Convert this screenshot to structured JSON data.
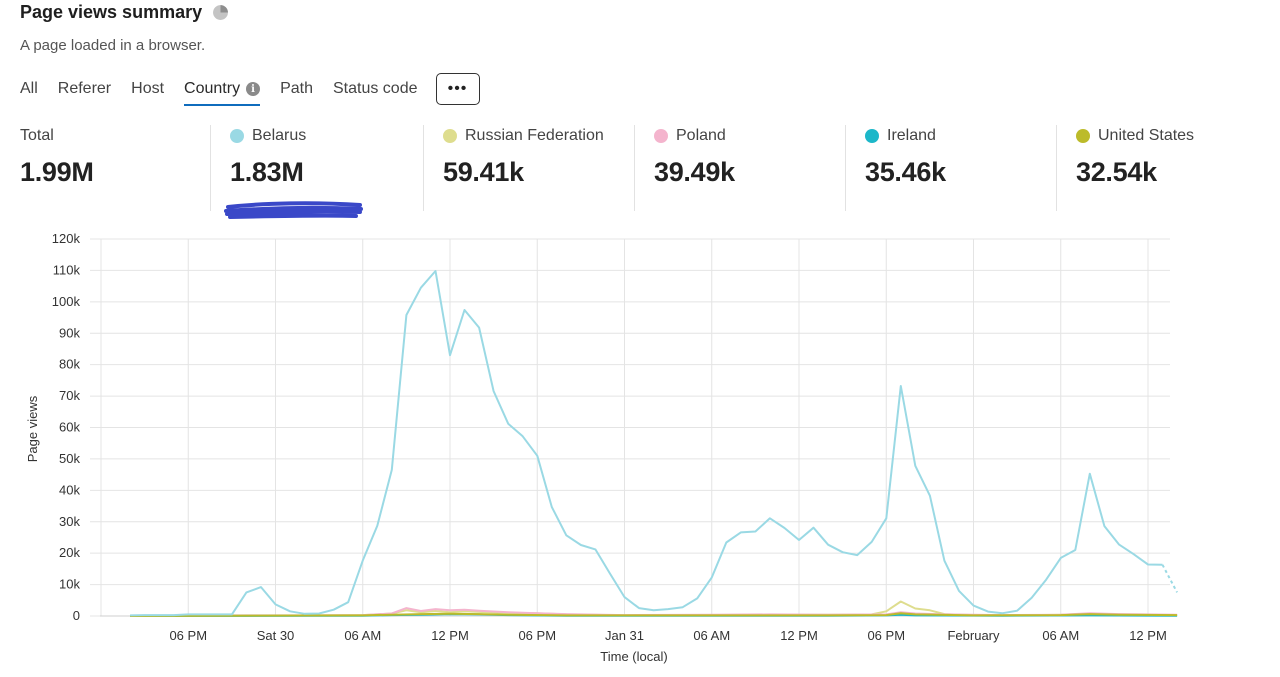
{
  "header": {
    "title": "Page views summary",
    "subtitle": "A page loaded in a browser."
  },
  "tabs": [
    {
      "label": "All",
      "active": false
    },
    {
      "label": "Referer",
      "active": false
    },
    {
      "label": "Host",
      "active": false
    },
    {
      "label": "Country",
      "active": true
    },
    {
      "label": "Path",
      "active": false
    },
    {
      "label": "Status code",
      "active": false
    }
  ],
  "more_button": {
    "label": "•••"
  },
  "metrics": [
    {
      "label": "Total",
      "value": "1.99M",
      "color": null
    },
    {
      "label": "Belarus",
      "value": "1.83M",
      "color": "#9ad9e4"
    },
    {
      "label": "Russian Federation",
      "value": "59.41k",
      "color": "#dedd8e"
    },
    {
      "label": "Poland",
      "value": "39.49k",
      "color": "#f4b4cd"
    },
    {
      "label": "Ireland",
      "value": "35.46k",
      "color": "#1cb7c9"
    },
    {
      "label": "United States",
      "value": "32.54k",
      "color": "#bcbb2a"
    }
  ],
  "chart_data": {
    "type": "line",
    "ylabel": "Page views",
    "xlabel": "Time (local)",
    "ylim": [
      0,
      120000
    ],
    "yticks": [
      0,
      10000,
      20000,
      30000,
      40000,
      50000,
      60000,
      70000,
      80000,
      90000,
      100000,
      110000,
      120000
    ],
    "ytick_labels": [
      "0",
      "10k",
      "20k",
      "30k",
      "40k",
      "50k",
      "60k",
      "70k",
      "80k",
      "90k",
      "100k",
      "110k",
      "120k"
    ],
    "xlim_hours": [
      -2,
      70
    ],
    "xticks_hours": [
      4,
      10,
      16,
      22,
      28,
      34,
      40,
      46,
      52,
      58,
      64,
      70
    ],
    "xtick_labels": [
      "06 PM",
      "Sat 30",
      "06 AM",
      "12 PM",
      "06 PM",
      "Jan 31",
      "06 AM",
      "12 PM",
      "06 PM",
      "February",
      "06 AM",
      "12 PM"
    ],
    "grid": true,
    "series": [
      {
        "name": "Belarus",
        "color": "#9ad9e4",
        "points": [
          [
            0,
            200
          ],
          [
            1,
            300
          ],
          [
            2,
            300
          ],
          [
            3,
            300
          ],
          [
            4,
            500
          ],
          [
            5,
            500
          ],
          [
            6,
            500
          ],
          [
            7,
            500
          ],
          [
            8,
            7500
          ],
          [
            9,
            9200
          ],
          [
            10,
            3700
          ],
          [
            11,
            1500
          ],
          [
            12,
            700
          ],
          [
            13,
            800
          ],
          [
            14,
            2000
          ],
          [
            15,
            4400
          ],
          [
            16,
            17700
          ],
          [
            17,
            28700
          ],
          [
            18,
            46500
          ],
          [
            19,
            95800
          ],
          [
            20,
            104500
          ],
          [
            21,
            109800
          ],
          [
            22,
            83000
          ],
          [
            23,
            97400
          ],
          [
            24,
            91800
          ],
          [
            25,
            71600
          ],
          [
            26,
            61200
          ],
          [
            27,
            57200
          ],
          [
            28,
            51000
          ],
          [
            29,
            34700
          ],
          [
            30,
            25700
          ],
          [
            31,
            22600
          ],
          [
            32,
            21200
          ],
          [
            33,
            13500
          ],
          [
            34,
            6000
          ],
          [
            35,
            2500
          ],
          [
            36,
            1800
          ],
          [
            37,
            2200
          ],
          [
            38,
            2800
          ],
          [
            39,
            5600
          ],
          [
            40,
            12300
          ],
          [
            41,
            23400
          ],
          [
            42,
            26600
          ],
          [
            43,
            26900
          ],
          [
            44,
            31100
          ],
          [
            45,
            28000
          ],
          [
            46,
            24200
          ],
          [
            47,
            28100
          ],
          [
            48,
            22700
          ],
          [
            49,
            20300
          ],
          [
            50,
            19400
          ],
          [
            51,
            23600
          ],
          [
            52,
            31100
          ],
          [
            53,
            73200
          ],
          [
            54,
            47800
          ],
          [
            55,
            38300
          ],
          [
            56,
            17600
          ],
          [
            57,
            8000
          ],
          [
            58,
            3300
          ],
          [
            59,
            1400
          ],
          [
            60,
            900
          ],
          [
            61,
            1700
          ],
          [
            62,
            5800
          ],
          [
            63,
            11600
          ],
          [
            64,
            18500
          ],
          [
            65,
            21000
          ],
          [
            66,
            45300
          ],
          [
            67,
            28600
          ],
          [
            68,
            22800
          ],
          [
            69,
            19700
          ],
          [
            70,
            16400
          ],
          [
            71,
            16300
          ]
        ],
        "dashed_tail": [
          [
            71,
            16300
          ],
          [
            72,
            7500
          ]
        ]
      },
      {
        "name": "Russian Federation",
        "color": "#dedd8e",
        "points": [
          [
            0,
            100
          ],
          [
            4,
            100
          ],
          [
            8,
            100
          ],
          [
            12,
            150
          ],
          [
            16,
            300
          ],
          [
            18,
            800
          ],
          [
            19,
            1800
          ],
          [
            20,
            1200
          ],
          [
            21,
            1600
          ],
          [
            22,
            1200
          ],
          [
            23,
            1500
          ],
          [
            24,
            1300
          ],
          [
            26,
            1000
          ],
          [
            28,
            900
          ],
          [
            30,
            500
          ],
          [
            34,
            200
          ],
          [
            40,
            300
          ],
          [
            44,
            400
          ],
          [
            48,
            400
          ],
          [
            51,
            500
          ],
          [
            52,
            1500
          ],
          [
            53,
            4600
          ],
          [
            54,
            2400
          ],
          [
            55,
            1800
          ],
          [
            56,
            600
          ],
          [
            58,
            300
          ],
          [
            62,
            300
          ],
          [
            64,
            400
          ],
          [
            66,
            700
          ],
          [
            68,
            500
          ],
          [
            70,
            400
          ],
          [
            72,
            300
          ]
        ]
      },
      {
        "name": "Poland",
        "color": "#f4b4cd",
        "points": [
          [
            0,
            100
          ],
          [
            8,
            200
          ],
          [
            12,
            200
          ],
          [
            16,
            300
          ],
          [
            18,
            800
          ],
          [
            19,
            2500
          ],
          [
            20,
            1600
          ],
          [
            21,
            2200
          ],
          [
            22,
            1800
          ],
          [
            23,
            2000
          ],
          [
            24,
            1700
          ],
          [
            26,
            1200
          ],
          [
            28,
            900
          ],
          [
            30,
            600
          ],
          [
            34,
            300
          ],
          [
            40,
            400
          ],
          [
            44,
            500
          ],
          [
            48,
            400
          ],
          [
            52,
            500
          ],
          [
            53,
            1200
          ],
          [
            54,
            800
          ],
          [
            56,
            500
          ],
          [
            60,
            300
          ],
          [
            64,
            400
          ],
          [
            66,
            900
          ],
          [
            68,
            600
          ],
          [
            72,
            400
          ]
        ]
      },
      {
        "name": "Ireland",
        "color": "#1cb7c9",
        "points": [
          [
            0,
            0
          ],
          [
            16,
            100
          ],
          [
            18,
            300
          ],
          [
            20,
            400
          ],
          [
            22,
            600
          ],
          [
            24,
            500
          ],
          [
            26,
            300
          ],
          [
            30,
            100
          ],
          [
            40,
            100
          ],
          [
            48,
            100
          ],
          [
            52,
            200
          ],
          [
            53,
            400
          ],
          [
            54,
            200
          ],
          [
            60,
            100
          ],
          [
            66,
            200
          ],
          [
            72,
            100
          ]
        ]
      },
      {
        "name": "United States",
        "color": "#bcbb2a",
        "points": [
          [
            0,
            0
          ],
          [
            16,
            200
          ],
          [
            18,
            400
          ],
          [
            20,
            600
          ],
          [
            22,
            700
          ],
          [
            24,
            600
          ],
          [
            26,
            400
          ],
          [
            30,
            200
          ],
          [
            40,
            200
          ],
          [
            48,
            200
          ],
          [
            52,
            300
          ],
          [
            53,
            900
          ],
          [
            54,
            500
          ],
          [
            58,
            200
          ],
          [
            64,
            300
          ],
          [
            66,
            600
          ],
          [
            68,
            400
          ],
          [
            72,
            300
          ]
        ]
      }
    ]
  }
}
